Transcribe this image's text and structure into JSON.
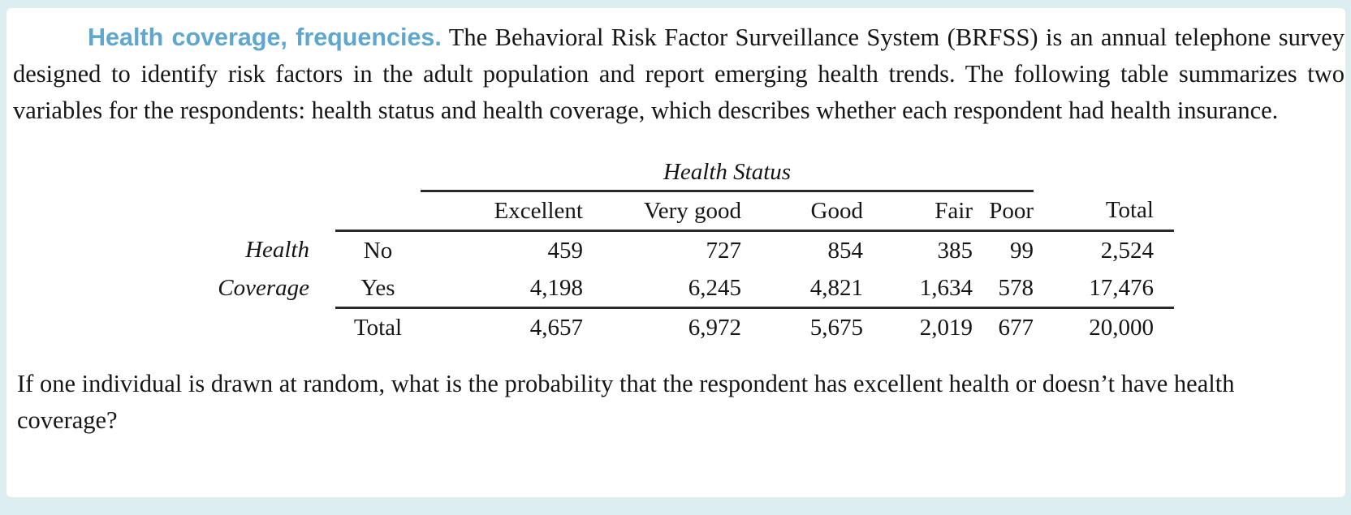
{
  "page": {
    "background_color": "#ddeef1",
    "card_color": "#ffffff",
    "title_color": "#5ea7ce",
    "rule_color": "#2b2b2b"
  },
  "problem": {
    "title": "Health coverage, frequencies.",
    "intro": "The Behavioral Risk Factor Surveillance System (BRFSS) is an annual telephone survey designed to identify risk factors in the adult population and report emerging health trends. The following table summarizes two variables for the respondents: health status and health coverage, which describes whether each respondent had health insurance.",
    "question": "If one individual is drawn at random, what is the probability that the respondent has excellent health or doesn’t have health coverage?"
  },
  "table": {
    "span_header": "Health Status",
    "row_group_label": [
      "Health",
      "Coverage"
    ],
    "columns": [
      "Excellent",
      "Very good",
      "Good",
      "Fair",
      "Poor",
      "Total"
    ],
    "rows": [
      {
        "label": "No",
        "values": [
          "459",
          "727",
          "854",
          "385",
          "99",
          "2,524"
        ]
      },
      {
        "label": "Yes",
        "values": [
          "4,198",
          "6,245",
          "4,821",
          "1,634",
          "578",
          "17,476"
        ]
      },
      {
        "label": "Total",
        "values": [
          "4,657",
          "6,972",
          "5,675",
          "2,019",
          "677",
          "20,000"
        ]
      }
    ]
  },
  "chart_data": {
    "type": "table",
    "title": "Health Status by Health Coverage contingency table",
    "column_variable": "Health Status",
    "row_variable": "Health Coverage",
    "columns": [
      "Excellent",
      "Very good",
      "Good",
      "Fair",
      "Poor",
      "Total"
    ],
    "rows": [
      {
        "label": "No",
        "values": [
          459,
          727,
          854,
          385,
          99,
          2524
        ]
      },
      {
        "label": "Yes",
        "values": [
          4198,
          6245,
          4821,
          1634,
          578,
          17476
        ]
      },
      {
        "label": "Total",
        "values": [
          4657,
          6972,
          5675,
          2019,
          677,
          20000
        ]
      }
    ]
  }
}
